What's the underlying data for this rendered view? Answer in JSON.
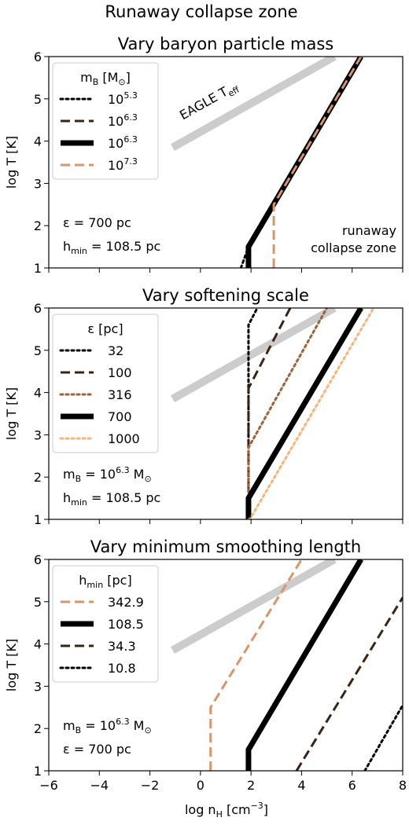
{
  "figure_title": "Runaway collapse zone",
  "xaxis_label": "log n<sub>H</sub> [cm<sup>−3</sup>]",
  "colors": {
    "eagle": "#cccccc",
    "black": "#000000",
    "dark_brown": "#3b2314",
    "brown": "#a0603a",
    "tan": "#d8956a",
    "light_orange": "#f7b57a"
  },
  "chart_data": [
    {
      "type": "line",
      "title": "Vary baryon particle mass",
      "xlim": [
        -6,
        8
      ],
      "ylim": [
        1,
        6
      ],
      "xticks": [
        -6,
        -4,
        -2,
        0,
        2,
        4,
        6,
        8
      ],
      "yticks": [
        1,
        2,
        3,
        4,
        5,
        6
      ],
      "show_xticklabels": false,
      "ylabel": "log T [K]",
      "legend_title": "m<sub>B</sub> [M<sub>⊙</sub>]",
      "legend_position": "upper-left",
      "series": [
        {
          "name": "10<sup>5.3</sup>",
          "style": "dotted",
          "color": "#000000",
          "width": 3,
          "x": [
            1.6,
            1.9,
            6.3
          ],
          "y": [
            1.0,
            1.5,
            6.0
          ]
        },
        {
          "name": "10<sup>6.3</sup>",
          "style": "dashed",
          "color": "#3b2314",
          "width": 3,
          "x": [
            1.9,
            1.9,
            6.35
          ],
          "y": [
            1.0,
            1.5,
            6.0
          ]
        },
        {
          "name": "10<sup>6.3</sup>",
          "style": "solid",
          "color": "#000000",
          "width": 7,
          "x": [
            1.9,
            1.9,
            6.35
          ],
          "y": [
            1.0,
            1.5,
            6.0
          ]
        },
        {
          "name": "10<sup>7.3</sup>",
          "style": "dashed",
          "color": "#d8956a",
          "width": 3,
          "x": [
            2.9,
            2.9,
            6.35
          ],
          "y": [
            1.0,
            2.5,
            6.0
          ]
        }
      ],
      "reference_line": {
        "name": "EAGLE T<sub>eff</sub>",
        "color": "#cccccc",
        "x": [
          -1.1,
          5.3
        ],
        "y": [
          3.85,
          6.0
        ],
        "label": "EAGLE T<sub>eff</sub>"
      },
      "annotations": [
        {
          "text": "ε = 700 pc",
          "position": "lower-left"
        },
        {
          "text": "h<sub>min</sub> = 108.5 pc",
          "position": "lower-left"
        },
        {
          "text": "runaway",
          "position": "lower-right"
        },
        {
          "text": "collapse zone",
          "position": "lower-right"
        }
      ]
    },
    {
      "type": "line",
      "title": "Vary softening scale",
      "xlim": [
        -6,
        8
      ],
      "ylim": [
        1,
        6
      ],
      "xticks": [
        -6,
        -4,
        -2,
        0,
        2,
        4,
        6,
        8
      ],
      "yticks": [
        1,
        2,
        3,
        4,
        5,
        6
      ],
      "show_xticklabels": false,
      "ylabel": "log T [K]",
      "legend_title": "ε [pc]",
      "legend_position": "upper-left",
      "series": [
        {
          "name": "32",
          "style": "dotted",
          "color": "#000000",
          "width": 3,
          "x": [
            1.9,
            1.9,
            2.25
          ],
          "y": [
            1.0,
            5.6,
            6.0
          ]
        },
        {
          "name": "100",
          "style": "dashed",
          "color": "#3b2314",
          "width": 3,
          "x": [
            1.9,
            1.9,
            3.55
          ],
          "y": [
            1.0,
            4.1,
            6.0
          ]
        },
        {
          "name": "316",
          "style": "dotted",
          "color": "#a0603a",
          "width": 3,
          "x": [
            1.9,
            1.9,
            5.0
          ],
          "y": [
            1.0,
            2.7,
            6.0
          ]
        },
        {
          "name": "700",
          "style": "solid",
          "color": "#000000",
          "width": 7,
          "x": [
            1.9,
            1.9,
            6.35
          ],
          "y": [
            1.0,
            1.5,
            6.0
          ]
        },
        {
          "name": "1000",
          "style": "dotted",
          "color": "#f7b57a",
          "width": 3,
          "x": [
            1.9,
            1.95,
            6.85
          ],
          "y": [
            1.0,
            1.0,
            6.0
          ]
        }
      ],
      "reference_line": {
        "name": "EAGLE T<sub>eff</sub>",
        "color": "#cccccc",
        "x": [
          -1.1,
          5.3
        ],
        "y": [
          3.85,
          6.0
        ]
      },
      "annotations": [
        {
          "text": "m<sub>B</sub> = 10<sup>6.3</sup> M<sub>⊙</sub>",
          "position": "lower-left"
        },
        {
          "text": "h<sub>min</sub> = 108.5 pc",
          "position": "lower-left"
        }
      ]
    },
    {
      "type": "line",
      "title": "Vary minimum smoothing length",
      "xlim": [
        -6,
        8
      ],
      "ylim": [
        1,
        6
      ],
      "xticks": [
        -6,
        -4,
        -2,
        0,
        2,
        4,
        6,
        8
      ],
      "yticks": [
        1,
        2,
        3,
        4,
        5,
        6
      ],
      "show_xticklabels": true,
      "ylabel": "log T [K]",
      "legend_title": "h<sub>min</sub> [pc]",
      "legend_position": "upper-left",
      "series": [
        {
          "name": "342.9",
          "style": "dashed",
          "color": "#d8956a",
          "width": 3,
          "x": [
            0.4,
            0.4,
            4.0
          ],
          "y": [
            1.0,
            2.5,
            6.0
          ]
        },
        {
          "name": "108.5",
          "style": "solid",
          "color": "#000000",
          "width": 7,
          "x": [
            1.9,
            1.9,
            6.35
          ],
          "y": [
            1.0,
            1.5,
            6.0
          ]
        },
        {
          "name": "34.3",
          "style": "dashed",
          "color": "#3b2314",
          "width": 3,
          "x": [
            3.8,
            8.0
          ],
          "y": [
            1.0,
            5.1
          ]
        },
        {
          "name": "10.8",
          "style": "dotted",
          "color": "#000000",
          "width": 3,
          "x": [
            6.5,
            8.0
          ],
          "y": [
            1.0,
            2.55
          ]
        }
      ],
      "reference_line": {
        "name": "EAGLE T<sub>eff</sub>",
        "color": "#cccccc",
        "x": [
          -1.1,
          5.3
        ],
        "y": [
          3.85,
          6.0
        ]
      },
      "annotations": [
        {
          "text": "m<sub>B</sub> = 10<sup>6.3</sup> M<sub>⊙</sub>",
          "position": "lower-left"
        },
        {
          "text": "ε = 700 pc",
          "position": "lower-left"
        }
      ]
    }
  ]
}
